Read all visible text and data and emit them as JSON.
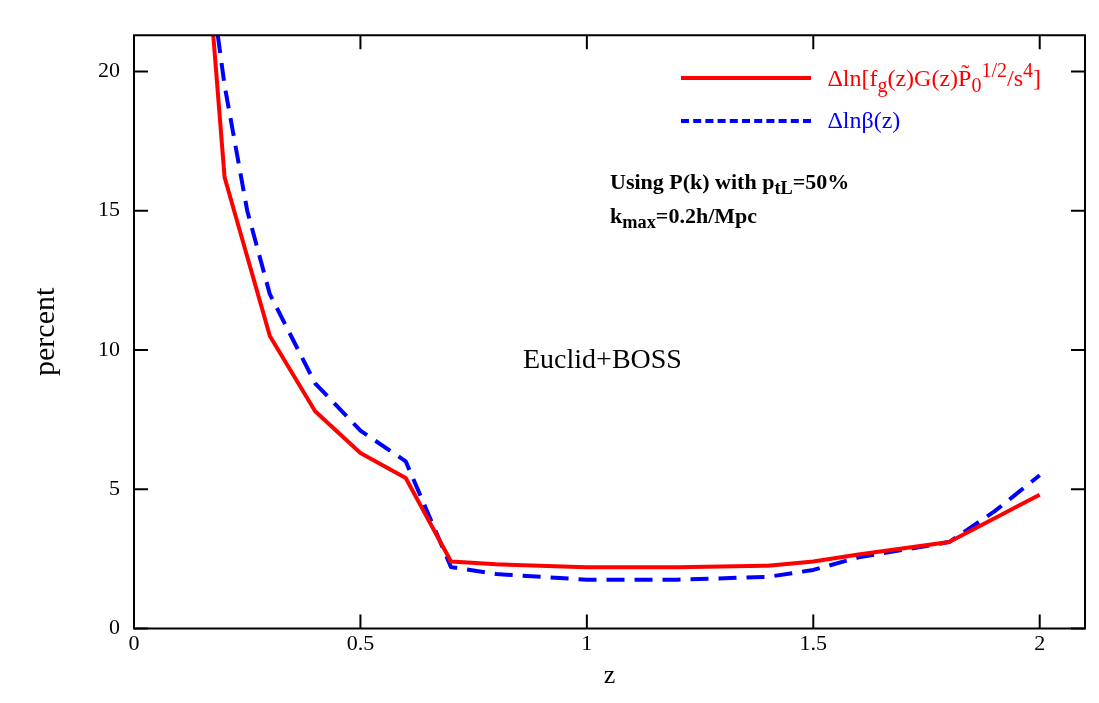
{
  "chart_data": {
    "type": "line",
    "xlabel": "z",
    "ylabel": "percent",
    "xlim": [
      0,
      2.1
    ],
    "ylim": [
      0,
      21.3
    ],
    "xticks": [
      0,
      0.5,
      1,
      1.5,
      2
    ],
    "yticks": [
      0,
      5,
      10,
      15,
      20
    ],
    "grid": false,
    "legend": "top right",
    "marker": "none",
    "series": [
      {
        "name": "Δln[f$_{g}$(z)G(z)P̃$_{0}$$^{1/2}$/s$^{4}$]",
        "color": "#ff0000",
        "line_style": "solid",
        "x": [
          0.175,
          0.2,
          0.3,
          0.4,
          0.5,
          0.6,
          0.7,
          0.8,
          1.0,
          1.2,
          1.4,
          1.5,
          1.6,
          1.8,
          2.0
        ],
        "values": [
          21.3,
          16.2,
          10.5,
          7.8,
          6.3,
          5.4,
          2.4,
          2.3,
          2.2,
          2.2,
          2.25,
          2.4,
          2.65,
          3.1,
          4.8
        ]
      },
      {
        "name": "Δlnβ(z)",
        "color": "#0000ff",
        "line_style": "dashed",
        "x": [
          0.185,
          0.2,
          0.25,
          0.3,
          0.4,
          0.5,
          0.6,
          0.7,
          0.8,
          1.0,
          1.2,
          1.4,
          1.5,
          1.6,
          1.8,
          1.9,
          2.0
        ],
        "values": [
          21.3,
          19.5,
          15,
          12,
          8.8,
          7.1,
          6.0,
          2.2,
          1.95,
          1.75,
          1.75,
          1.85,
          2.1,
          2.55,
          3.1,
          4.2,
          5.5
        ]
      }
    ],
    "annotations": [
      "Using P(k) with p$_{tL}$=50%",
      "k$_{max}$=0.2h/Mpc",
      "Euclid+BOSS"
    ]
  }
}
